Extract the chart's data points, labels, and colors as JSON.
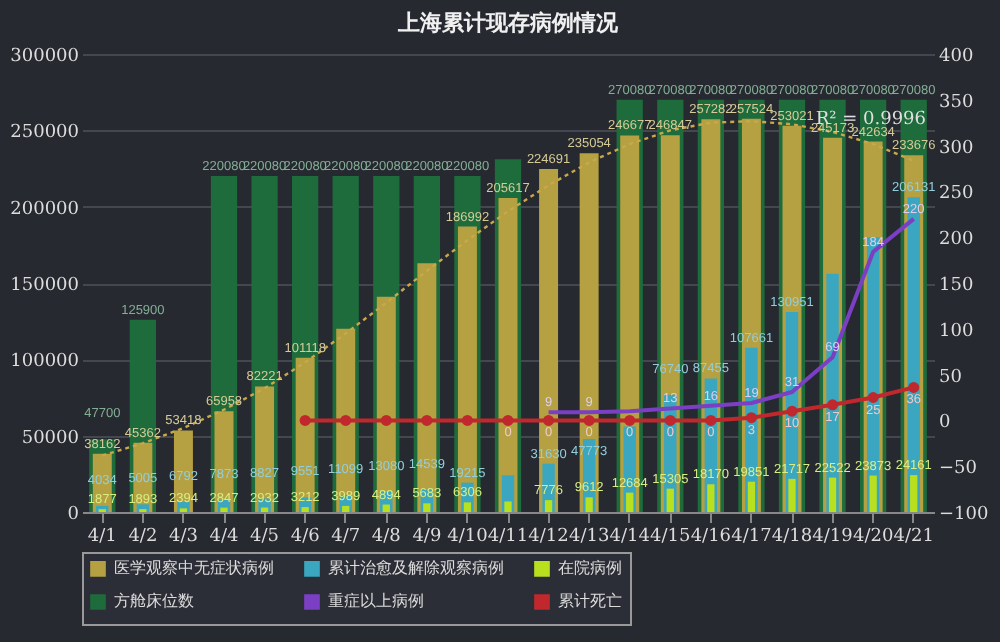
{
  "chart_data": {
    "type": "bar",
    "title": "上海累计现存病例情况",
    "categories": [
      "4/1",
      "4/2",
      "4/3",
      "4/4",
      "4/5",
      "4/6",
      "4/7",
      "4/8",
      "4/9",
      "4/10",
      "4/11",
      "4/12",
      "4/13",
      "4/14",
      "4/15",
      "4/16",
      "4/17",
      "4/18",
      "4/19",
      "4/20",
      "4/21"
    ],
    "series": [
      {
        "name": "医学观察中无症状病例",
        "color": "#b5a042",
        "values": [
          38162,
          45362,
          53418,
          65958,
          82221,
          101118,
          120000,
          141000,
          163000,
          186992,
          205617,
          224691,
          235054,
          246677,
          246847,
          257282,
          257524,
          253021,
          245173,
          242634,
          233676
        ],
        "value_labels": [
          "38162",
          "45362",
          "53418",
          "65958",
          "82221",
          "101118",
          null,
          null,
          null,
          "186992",
          "205617",
          "224691",
          "235054",
          "246677",
          "246847",
          "257282",
          "257524",
          "253021",
          "245173",
          "242634",
          "233676"
        ]
      },
      {
        "name": "累计治愈及解除观察病例",
        "color": "#3aa6bf",
        "values": [
          4034,
          5005,
          6792,
          7873,
          8827,
          9551,
          11099,
          13080,
          14539,
          19215,
          24000,
          31630,
          47773,
          56000,
          76740,
          87455,
          107661,
          130951,
          156000,
          180000,
          206131
        ],
        "value_labels": [
          "4034",
          "5005",
          "6792",
          "7873",
          "8827",
          "9551",
          "11099",
          "13080",
          "14539",
          "19215",
          null,
          "31630",
          "47773",
          null,
          "76740",
          "87455",
          "107661",
          "130951",
          null,
          null,
          "206131"
        ]
      },
      {
        "name": "在院病例",
        "color": "#b8e01e",
        "values": [
          1877,
          1893,
          2394,
          2847,
          2932,
          3212,
          3989,
          4894,
          5683,
          6306,
          6900,
          7776,
          9612,
          12684,
          15305,
          18170,
          19851,
          21717,
          22522,
          23873,
          24161
        ],
        "value_labels": [
          "1877",
          "1893",
          "2394",
          "2847",
          "2932",
          "3212",
          "3989",
          "4894",
          "5683",
          "6306",
          null,
          "7776",
          "9612",
          "12684",
          "15305",
          "18170",
          "19851",
          "21717",
          "22522",
          "23873",
          "24161"
        ]
      },
      {
        "name": "方舱床位数",
        "color": "#1e6b3c",
        "values": [
          47700,
          125900,
          null,
          220080,
          220080,
          220080,
          220080,
          220080,
          220080,
          220080,
          231000,
          null,
          null,
          270080,
          270080,
          270080,
          270080,
          270080,
          270080,
          270080,
          270080
        ],
        "value_labels": [
          "47700",
          "125900",
          null,
          "220080",
          "220080",
          "220080",
          "220080",
          "220080",
          "220080",
          "220080",
          null,
          null,
          null,
          "270080",
          "270080",
          "270080",
          "270080",
          "270080",
          "270080",
          "270080",
          "270080"
        ]
      },
      {
        "name": "重症以上病例",
        "color": "#7b3fc4",
        "type": "line",
        "axis": "y2",
        "values": [
          null,
          null,
          null,
          null,
          null,
          null,
          null,
          null,
          null,
          null,
          null,
          9,
          9,
          10,
          13,
          16,
          19,
          31,
          69,
          184,
          220
        ],
        "value_labels": [
          null,
          null,
          null,
          null,
          null,
          null,
          null,
          null,
          null,
          null,
          null,
          "9",
          "9",
          null,
          "13",
          "16",
          "19",
          "31",
          "69",
          "184",
          "220"
        ]
      },
      {
        "name": "累计死亡",
        "color": "#c0282d",
        "type": "line",
        "axis": "y2",
        "marker": "circle",
        "values": [
          null,
          null,
          null,
          null,
          null,
          0,
          0,
          0,
          0,
          0,
          0,
          0,
          0,
          0,
          0,
          0,
          3,
          10,
          17,
          25,
          36
        ],
        "value_labels": [
          null,
          null,
          null,
          null,
          null,
          null,
          null,
          null,
          null,
          null,
          "0",
          "0",
          "0",
          "0",
          "0",
          "0",
          "3",
          "10",
          "17",
          "25",
          "36"
        ]
      },
      {
        "color": "#c9a84a",
        "type": "line",
        "line_style": "dotted",
        "values": [
          37000,
          45000,
          55000,
          67000,
          81000,
          98000,
          117000,
          137000,
          158000,
          178000,
          197000,
          214000,
          229000,
          241000,
          250000,
          255000,
          256000,
          254000,
          249000,
          241000,
          230000
        ]
      }
    ],
    "ylim": [
      0,
      300000
    ],
    "yticks": [
      0,
      50000,
      100000,
      150000,
      200000,
      250000,
      300000
    ],
    "y2lim": [
      -100,
      400
    ],
    "y2ticks": [
      -100,
      -50,
      0,
      50,
      100,
      150,
      200,
      250,
      300,
      350,
      400
    ],
    "grid": "y",
    "legend": "bottom",
    "annotations": [
      "R² = 0.9996"
    ]
  }
}
